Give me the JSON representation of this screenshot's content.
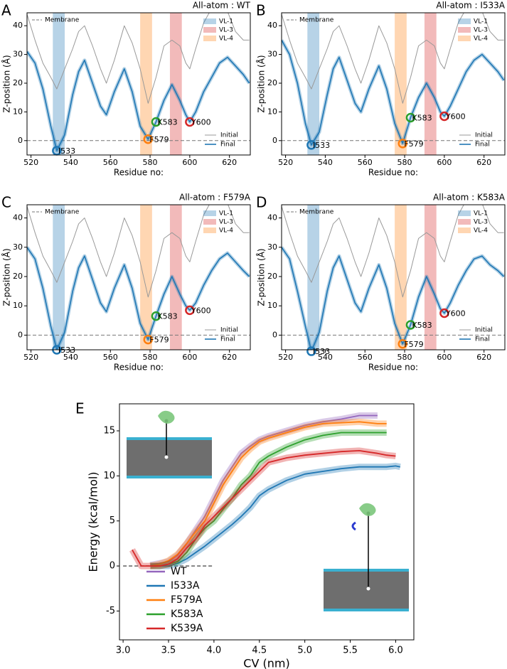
{
  "chart_data": [
    {
      "type": "line",
      "panel": "A",
      "title": "All-atom : WT",
      "title_color": "#9467bd",
      "x_label": "Residue no:",
      "y_label": "Z-position (Å)",
      "xlim": [
        518,
        630.5
      ],
      "ylim": [
        -5,
        44.5
      ],
      "xticks": [
        520,
        540,
        560,
        580,
        600,
        620
      ],
      "yticks": [
        0,
        10,
        20,
        30,
        40
      ],
      "x": [
        518,
        522,
        526,
        530,
        533,
        537,
        541,
        544,
        547,
        551,
        555,
        558,
        562,
        567,
        571,
        575,
        579,
        583,
        587,
        591,
        595,
        598,
        600,
        603,
        607,
        611,
        615,
        619,
        623,
        627,
        630
      ],
      "series": [
        {
          "name": "Initial",
          "color": "#999999",
          "values": [
            44,
            35,
            27,
            22,
            18,
            25,
            32,
            38,
            40,
            33,
            25,
            20,
            28,
            40,
            34,
            25,
            13,
            22,
            33,
            35,
            33,
            27,
            25,
            32,
            41,
            46,
            47,
            45,
            38,
            35,
            35
          ]
        },
        {
          "name": "Final",
          "color": "#1f77b4",
          "values": [
            31,
            27,
            18,
            5,
            -3.5,
            2,
            16,
            24,
            28,
            20,
            12,
            9,
            17,
            25,
            17,
            5,
            0.5,
            6.5,
            14,
            19.5,
            14,
            9,
            6.5,
            10,
            17,
            22,
            27,
            29,
            26,
            23,
            20
          ]
        }
      ],
      "regions": [
        {
          "name": "VL-1",
          "x": [
            531,
            537
          ],
          "color": "#1f77b4"
        },
        {
          "name": "VL-3",
          "x": [
            590,
            596
          ],
          "color": "#d62728"
        },
        {
          "name": "VL-4",
          "x": [
            575,
            581
          ],
          "color": "#ff7f0e"
        }
      ],
      "reference_line": {
        "name": "Membrane",
        "y": 0
      },
      "annotations": [
        {
          "label": "I533",
          "x": 533,
          "y": -3.5,
          "color": "#1f77b4"
        },
        {
          "label": "F579",
          "x": 579,
          "y": 0.5,
          "color": "#ff7f0e"
        },
        {
          "label": "K583",
          "x": 583,
          "y": 6.5,
          "color": "#2ca02c"
        },
        {
          "label": "Y600",
          "x": 600,
          "y": 6.5,
          "color": "#d62728"
        }
      ]
    },
    {
      "type": "line",
      "panel": "B",
      "title": "All-atom : I533A",
      "title_color": "#1f77b4",
      "x_label": "Residue no:",
      "y_label": "Z-position (Å)",
      "xlim": [
        518,
        630.5
      ],
      "ylim": [
        -5,
        44.5
      ],
      "xticks": [
        520,
        540,
        560,
        580,
        600,
        620
      ],
      "yticks": [
        0,
        10,
        20,
        30,
        40
      ],
      "x": [
        518,
        522,
        526,
        530,
        533,
        537,
        541,
        544,
        547,
        551,
        555,
        558,
        562,
        567,
        571,
        575,
        579,
        583,
        587,
        591,
        595,
        598,
        600,
        603,
        607,
        611,
        615,
        619,
        623,
        627,
        630
      ],
      "series": [
        {
          "name": "Initial",
          "color": "#999999",
          "values": [
            44,
            35,
            27,
            22,
            18,
            25,
            32,
            38,
            40,
            33,
            25,
            20,
            28,
            40,
            34,
            25,
            13,
            22,
            33,
            35,
            33,
            27,
            25,
            32,
            41,
            46,
            47,
            45,
            38,
            35,
            35
          ]
        },
        {
          "name": "Final",
          "color": "#1f77b4",
          "values": [
            35,
            30,
            20,
            6,
            -1.5,
            3,
            16,
            25,
            29,
            21,
            13,
            10,
            18,
            26,
            18,
            6,
            -1,
            8,
            15,
            20,
            15,
            10,
            8.5,
            12,
            18,
            24,
            28,
            30,
            27,
            24,
            21
          ]
        }
      ],
      "regions": [
        {
          "name": "VL-1",
          "x": [
            531,
            537
          ],
          "color": "#1f77b4"
        },
        {
          "name": "VL-3",
          "x": [
            590,
            596
          ],
          "color": "#d62728"
        },
        {
          "name": "VL-4",
          "x": [
            575,
            581
          ],
          "color": "#ff7f0e"
        }
      ],
      "reference_line": {
        "name": "Membrane",
        "y": 0
      },
      "annotations": [
        {
          "label": "I533",
          "x": 533,
          "y": -1.5,
          "color": "#1f77b4"
        },
        {
          "label": "F579",
          "x": 579,
          "y": -1,
          "color": "#ff7f0e"
        },
        {
          "label": "K583",
          "x": 583,
          "y": 8,
          "color": "#2ca02c"
        },
        {
          "label": "Y600",
          "x": 600,
          "y": 8.5,
          "color": "#d62728"
        }
      ]
    },
    {
      "type": "line",
      "panel": "C",
      "title": "All-atom : F579A",
      "title_color": "#ff7f0e",
      "x_label": "Residue no:",
      "y_label": "Z-position (Å)",
      "xlim": [
        518,
        630.5
      ],
      "ylim": [
        -5,
        44.5
      ],
      "xticks": [
        520,
        540,
        560,
        580,
        600,
        620
      ],
      "yticks": [
        0,
        10,
        20,
        30,
        40
      ],
      "x": [
        518,
        522,
        526,
        530,
        533,
        537,
        541,
        544,
        547,
        551,
        555,
        558,
        562,
        567,
        571,
        575,
        579,
        583,
        587,
        591,
        595,
        598,
        600,
        603,
        607,
        611,
        615,
        619,
        623,
        627,
        630
      ],
      "series": [
        {
          "name": "Initial",
          "color": "#999999",
          "values": [
            44,
            35,
            27,
            22,
            18,
            25,
            32,
            38,
            40,
            33,
            25,
            20,
            28,
            40,
            34,
            25,
            13,
            22,
            33,
            35,
            33,
            27,
            25,
            32,
            41,
            46,
            47,
            45,
            38,
            35,
            35
          ]
        },
        {
          "name": "Final",
          "color": "#1f77b4",
          "values": [
            30,
            26,
            16,
            3,
            -5,
            1,
            15,
            23,
            27,
            19,
            11,
            8,
            16,
            24,
            16,
            4,
            -1.5,
            6.5,
            14,
            20,
            14,
            10,
            8.5,
            11,
            17,
            22,
            26,
            28,
            25,
            22,
            20
          ]
        }
      ],
      "regions": [
        {
          "name": "VL-1",
          "x": [
            531,
            537
          ],
          "color": "#1f77b4"
        },
        {
          "name": "VL-3",
          "x": [
            590,
            596
          ],
          "color": "#d62728"
        },
        {
          "name": "VL-4",
          "x": [
            575,
            581
          ],
          "color": "#ff7f0e"
        }
      ],
      "reference_line": {
        "name": "Membrane",
        "y": 0
      },
      "annotations": [
        {
          "label": "I533",
          "x": 533,
          "y": -5,
          "color": "#1f77b4"
        },
        {
          "label": "F579",
          "x": 579,
          "y": -1.5,
          "color": "#ff7f0e"
        },
        {
          "label": "K583",
          "x": 583,
          "y": 6.5,
          "color": "#2ca02c"
        },
        {
          "label": "Y600",
          "x": 600,
          "y": 8.5,
          "color": "#d62728"
        }
      ]
    },
    {
      "type": "line",
      "panel": "D",
      "title": "All-atom : K583A",
      "title_color": "#2ca02c",
      "x_label": "Residue no:",
      "y_label": "Z-position (Å)",
      "xlim": [
        518,
        630.5
      ],
      "ylim": [
        -5,
        44.5
      ],
      "xticks": [
        520,
        540,
        560,
        580,
        600,
        620
      ],
      "yticks": [
        0,
        10,
        20,
        30,
        40
      ],
      "x": [
        518,
        522,
        526,
        530,
        533,
        537,
        541,
        544,
        547,
        551,
        555,
        558,
        562,
        567,
        571,
        575,
        579,
        583,
        587,
        591,
        595,
        598,
        600,
        603,
        607,
        611,
        615,
        619,
        623,
        627,
        630
      ],
      "series": [
        {
          "name": "Initial",
          "color": "#999999",
          "values": [
            44,
            35,
            27,
            22,
            18,
            25,
            32,
            38,
            40,
            33,
            25,
            20,
            28,
            40,
            34,
            25,
            13,
            22,
            33,
            35,
            33,
            27,
            25,
            32,
            41,
            46,
            47,
            45,
            38,
            35,
            35
          ]
        },
        {
          "name": "Final",
          "color": "#1f77b4",
          "values": [
            30,
            26,
            15,
            3,
            -5.5,
            1,
            15,
            23,
            27,
            19,
            11,
            8,
            16,
            24,
            16,
            4,
            -3,
            3.5,
            13,
            20,
            14,
            9,
            7.5,
            11,
            17,
            22,
            26,
            27,
            24,
            22,
            20
          ]
        }
      ],
      "regions": [
        {
          "name": "VL-1",
          "x": [
            531,
            537
          ],
          "color": "#1f77b4"
        },
        {
          "name": "VL-3",
          "x": [
            590,
            596
          ],
          "color": "#d62728"
        },
        {
          "name": "VL-4",
          "x": [
            575,
            581
          ],
          "color": "#ff7f0e"
        }
      ],
      "reference_line": {
        "name": "Membrane",
        "y": 0
      },
      "annotations": [
        {
          "label": "I533",
          "x": 533,
          "y": -5.5,
          "color": "#1f77b4"
        },
        {
          "label": "F579",
          "x": 579,
          "y": -3,
          "color": "#ff7f0e"
        },
        {
          "label": "K583",
          "x": 583,
          "y": 3.5,
          "color": "#2ca02c"
        },
        {
          "label": "Y600",
          "x": 600,
          "y": 7.5,
          "color": "#d62728"
        }
      ]
    },
    {
      "type": "line",
      "panel": "E",
      "x_label": "CV (nm)",
      "y_label": "Energy (kcal/mol)",
      "xlim": [
        2.96,
        6.2
      ],
      "ylim": [
        -8.2,
        18
      ],
      "xticks": [
        {
          "value": 3,
          "label": "3.0"
        },
        {
          "value": 3.5,
          "label": "3.5"
        },
        {
          "value": 4,
          "label": "4.0"
        },
        {
          "value": 4.5,
          "label": "4.5"
        },
        {
          "value": 5,
          "label": "5.0"
        },
        {
          "value": 5.5,
          "label": "5.5"
        },
        {
          "value": 6,
          "label": "6.0"
        }
      ],
      "yticks": [
        -5,
        0,
        5,
        10,
        15
      ],
      "x": [
        3.1,
        3.2,
        3.3,
        3.4,
        3.5,
        3.6,
        3.7,
        3.8,
        3.9,
        4.0,
        4.1,
        4.2,
        4.3,
        4.4,
        4.5,
        4.6,
        4.8,
        5.0,
        5.2,
        5.4,
        5.6,
        5.8,
        5.9,
        6.0,
        6.05
      ],
      "series": [
        {
          "name": "WT",
          "color": "#9467bd",
          "values": [
            null,
            null,
            0.1,
            0.3,
            0.5,
            1.2,
            2.5,
            4,
            5.5,
            7.5,
            9.5,
            11,
            12.5,
            13.3,
            14,
            14.4,
            15,
            15.6,
            16,
            16.3,
            16.7,
            16.7,
            null,
            null,
            null
          ]
        },
        {
          "name": "I533A",
          "color": "#1f77b4",
          "values": [
            null,
            null,
            0,
            0,
            0,
            0.3,
            0.8,
            1.5,
            2.2,
            3,
            3.8,
            4.6,
            5.5,
            6.5,
            7.8,
            8.5,
            9.5,
            10.2,
            10.5,
            10.8,
            11,
            11,
            11,
            11.1,
            11
          ]
        },
        {
          "name": "F579A",
          "color": "#ff7f0e",
          "values": [
            null,
            null,
            0,
            0.2,
            0.6,
            1.3,
            2.5,
            3.8,
            5,
            7,
            9,
            10.5,
            12,
            13,
            13.8,
            14.2,
            14.8,
            15.4,
            15.8,
            15.9,
            16,
            15.8,
            15.8,
            null,
            null
          ]
        },
        {
          "name": "K583A",
          "color": "#2ca02c",
          "values": [
            null,
            null,
            0,
            0,
            0.2,
            0.5,
            1.5,
            3,
            4.2,
            5,
            6.3,
            7.5,
            9,
            10,
            11.5,
            12.2,
            13.2,
            14,
            14.5,
            14.8,
            14.8,
            14.8,
            14.8,
            null,
            null
          ]
        },
        {
          "name": "K539A",
          "color": "#d62728",
          "values": [
            1.8,
            0,
            0,
            0,
            0.2,
            0.8,
            2,
            3,
            4.5,
            5.5,
            6.5,
            7.5,
            8.5,
            9.5,
            10.5,
            11.5,
            12,
            12.3,
            12.5,
            12.7,
            12.8,
            12.5,
            12.3,
            12.2,
            null
          ]
        }
      ],
      "reference_line": {
        "y": 0,
        "x": [
          3.0,
          4.0
        ]
      }
    }
  ]
}
